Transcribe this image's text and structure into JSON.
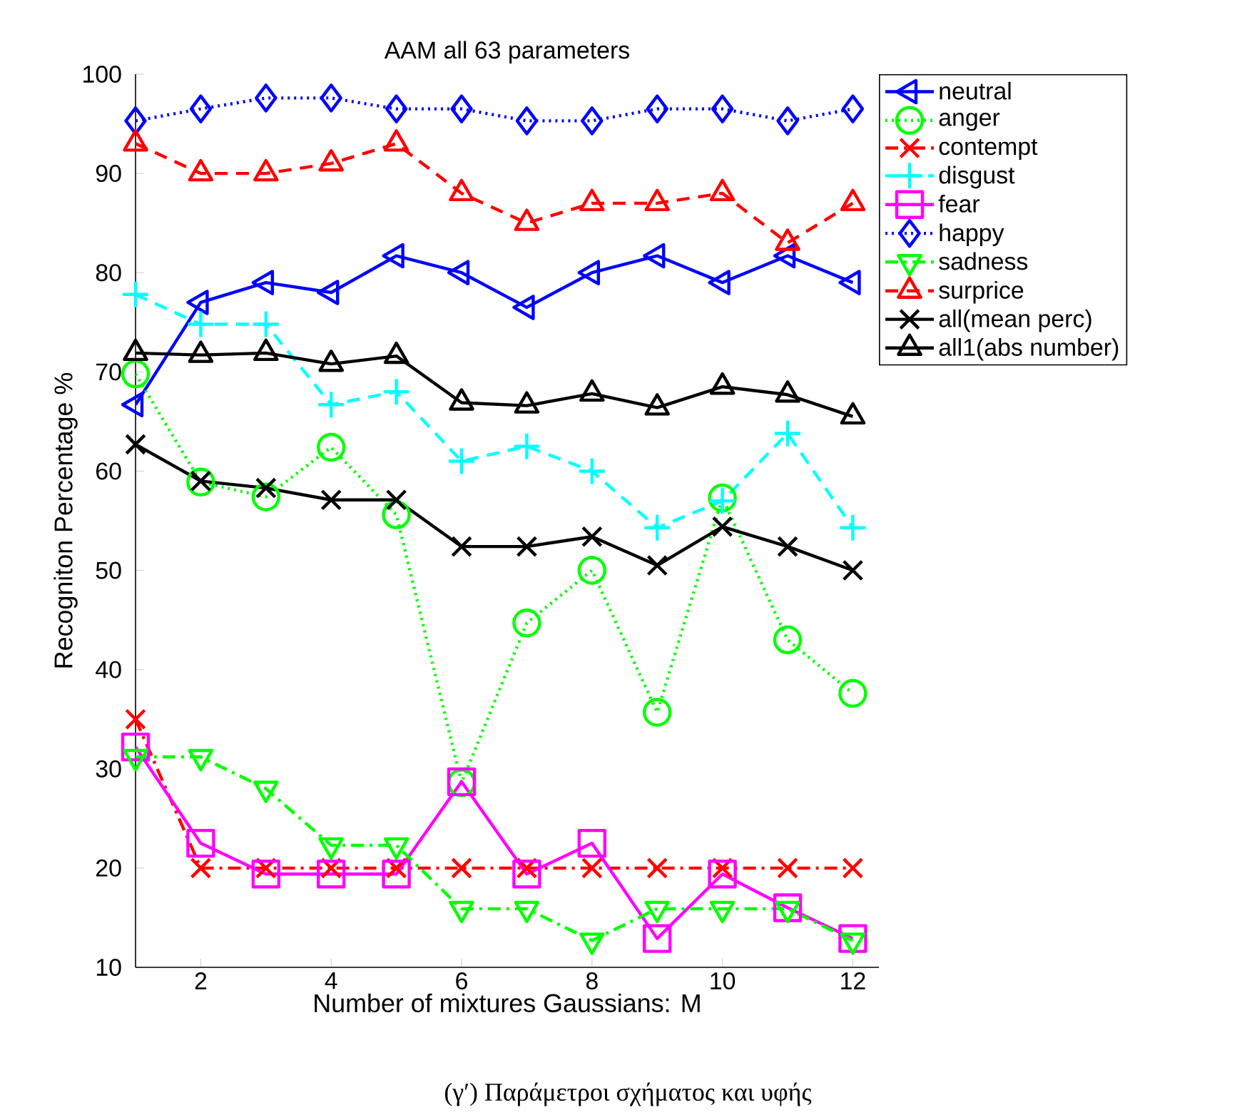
{
  "chart_data": {
    "type": "line",
    "title": "AAM all 63 parameters",
    "xlabel": "Number of mixtures Gaussians: M",
    "ylabel": "Recogniton Percentage %",
    "annotations": [
      "(γ′) Παράμετροι σχήματος και υφής"
    ],
    "x": [
      1,
      2,
      3,
      4,
      5,
      6,
      7,
      8,
      9,
      10,
      11,
      12
    ],
    "xlim": [
      1,
      12.4
    ],
    "xticks": [
      2,
      4,
      6,
      8,
      10,
      12
    ],
    "ylim": [
      10,
      100
    ],
    "yticks": [
      10,
      20,
      30,
      40,
      50,
      60,
      70,
      80,
      90,
      100
    ],
    "legend": "top right",
    "grid": false,
    "series": [
      {
        "name": "neutral",
        "color": "#0000ff",
        "marker": "triangle-left",
        "line_style": "solid",
        "values": [
          66.7,
          77,
          79,
          78,
          81.7,
          80,
          76.5,
          80,
          81.7,
          79,
          81.7,
          79
        ]
      },
      {
        "name": "anger",
        "color": "#00ff00",
        "marker": "circle",
        "line_style": "dotted",
        "values": [
          69.8,
          58.9,
          57.4,
          62.4,
          55.6,
          28.6,
          44.7,
          50,
          35.7,
          57.3,
          43,
          37.6
        ]
      },
      {
        "name": "contempt",
        "color": "#ff0000",
        "marker": "cross",
        "line_style": "dashdot",
        "values": [
          35,
          20,
          20,
          20,
          20,
          20,
          20,
          20,
          20,
          20,
          20,
          20
        ]
      },
      {
        "name": "disgust",
        "color": "#00ffff",
        "marker": "plus",
        "line_style": "dashed",
        "values": [
          77.8,
          74.8,
          74.8,
          66.7,
          68,
          61,
          62.5,
          60,
          54.3,
          57,
          63.8,
          54.3
        ]
      },
      {
        "name": "fear",
        "color": "#ff00ff",
        "marker": "square",
        "line_style": "solid",
        "values": [
          32.2,
          22.5,
          19.4,
          19.4,
          19.4,
          28.7,
          19.4,
          22.5,
          12.9,
          19.4,
          16,
          12.9
        ]
      },
      {
        "name": "happy",
        "color": "#0000ff",
        "marker": "diamond",
        "line_style": "dotted",
        "values": [
          95.3,
          96.5,
          97.6,
          97.6,
          96.5,
          96.5,
          95.3,
          95.3,
          96.5,
          96.5,
          95.3,
          96.5
        ]
      },
      {
        "name": "sadness",
        "color": "#00ff00",
        "marker": "triangle-down",
        "line_style": "dashdot",
        "values": [
          31.2,
          31.2,
          28,
          22.3,
          22.3,
          15.9,
          15.9,
          12.7,
          15.9,
          15.9,
          15.9,
          12.7
        ]
      },
      {
        "name": "surprice",
        "color": "#ff0000",
        "marker": "triangle",
        "line_style": "dashed",
        "values": [
          93,
          90,
          90,
          91,
          93,
          88,
          85,
          87,
          87,
          88,
          83,
          87
        ]
      },
      {
        "name": "all(mean perc)",
        "color": "#000000",
        "marker": "cross",
        "line_style": "solid",
        "values": [
          62.7,
          59,
          58.3,
          57.1,
          57.1,
          52.4,
          52.4,
          53.4,
          50.5,
          54.4,
          52.4,
          50
        ]
      },
      {
        "name": "all1(abs number)",
        "color": "#000000",
        "marker": "triangle",
        "line_style": "solid",
        "values": [
          71.9,
          71.7,
          71.9,
          70.8,
          71.6,
          66.9,
          66.6,
          67.8,
          66.4,
          68.5,
          67.7,
          65.5
        ]
      }
    ]
  }
}
